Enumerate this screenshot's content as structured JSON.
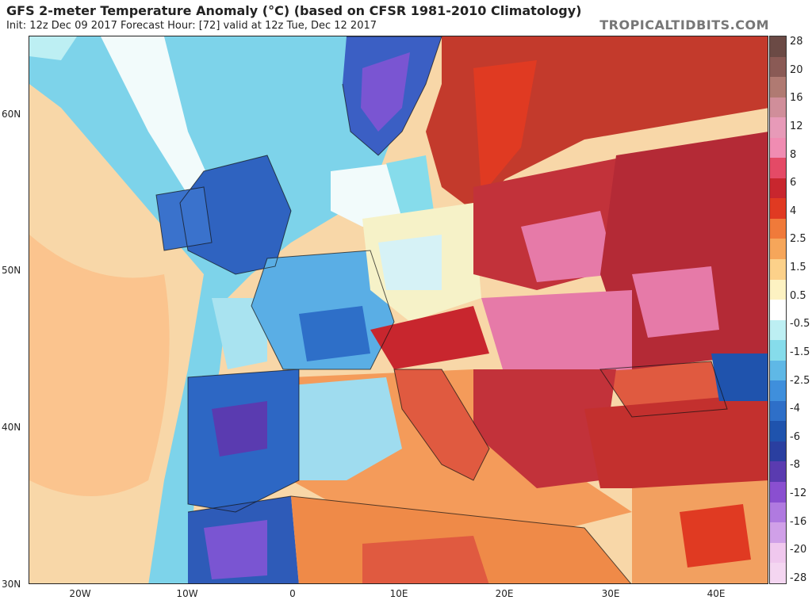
{
  "header": {
    "title": "GFS 2-meter Temperature Anomaly (°C) (based on CFSR 1981-2010 Climatology)",
    "subtitle": "Init: 12z Dec 09 2017   Forecast Hour: [72]   valid at 12z Tue, Dec 12 2017",
    "brand": "TROPICALTIDBITS.COM"
  },
  "axes": {
    "lat_labels": [
      "60N",
      "50N",
      "40N",
      "30N"
    ],
    "lon_labels": [
      "20W",
      "10W",
      "0",
      "10E",
      "20E",
      "30E",
      "40E"
    ]
  },
  "colorbar": {
    "labels": [
      "28",
      "20",
      "16",
      "12",
      "8",
      "6",
      "4",
      "2.5",
      "1.5",
      "0.5",
      "-0.5",
      "-1.5",
      "-2.5",
      "-4",
      "-6",
      "-8",
      "-12",
      "-16",
      "-20",
      "-28"
    ],
    "colors": [
      "#6b4a45",
      "#8a5a55",
      "#b07a72",
      "#d08e9a",
      "#e79ab8",
      "#f08cb2",
      "#e44a66",
      "#c8262e",
      "#e03a22",
      "#f07a3a",
      "#f6a65a",
      "#fcd18a",
      "#fdf2c2",
      "#ffffff",
      "#bdeff3",
      "#86dceb",
      "#5fb8e6",
      "#3f8fdc",
      "#2e6fc8",
      "#1f53ad",
      "#2a3fa0",
      "#5a3bb0",
      "#8a4fd0",
      "#b07ae0",
      "#d0a0e8",
      "#f0c8ee",
      "#f4d6f1"
    ]
  },
  "map_regions": {
    "ocean_west": "#f8d7a8",
    "ocean_atlantic_warm": "#fbc48e",
    "ocean_cold": "#7dd3ea",
    "ocean_white": "#f2fbfb",
    "iberia": "#2d67c4",
    "france": "#5aaee5",
    "british_isles": "#2f63c0",
    "norway": "#3b5fc4",
    "norway_violet": "#7a55d2",
    "scandinavia_east": "#c33a2c",
    "central_europe": "#f6f2c8",
    "east_europe": "#c2323a",
    "east_europe_pink": "#e67aa8",
    "mediterranean": "#f49b5a",
    "italy_balkans": "#e05a40",
    "turkey": "#c3302e",
    "north_africa": "#ef8a48",
    "levant": "#f2a060"
  }
}
